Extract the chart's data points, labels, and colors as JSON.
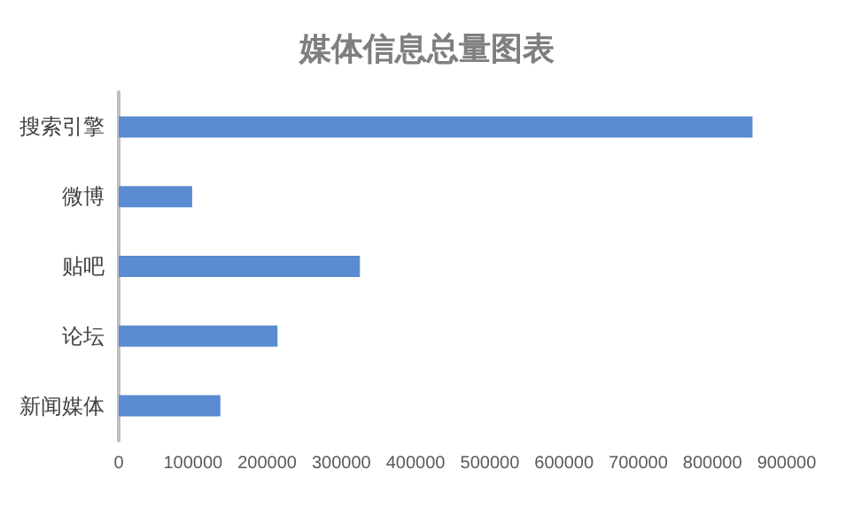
{
  "chart_data": {
    "type": "bar",
    "orientation": "horizontal",
    "title": "媒体信息总量图表",
    "categories": [
      "搜索引擎",
      "微博",
      "贴吧",
      "论坛",
      "新闻媒体"
    ],
    "values": [
      854000,
      99000,
      325000,
      214000,
      137000
    ],
    "color": "#5b8bd0",
    "xlim": [
      0,
      900000
    ],
    "xticks": [
      0,
      100000,
      200000,
      300000,
      400000,
      500000,
      600000,
      700000,
      800000,
      900000
    ],
    "grid": false
  }
}
